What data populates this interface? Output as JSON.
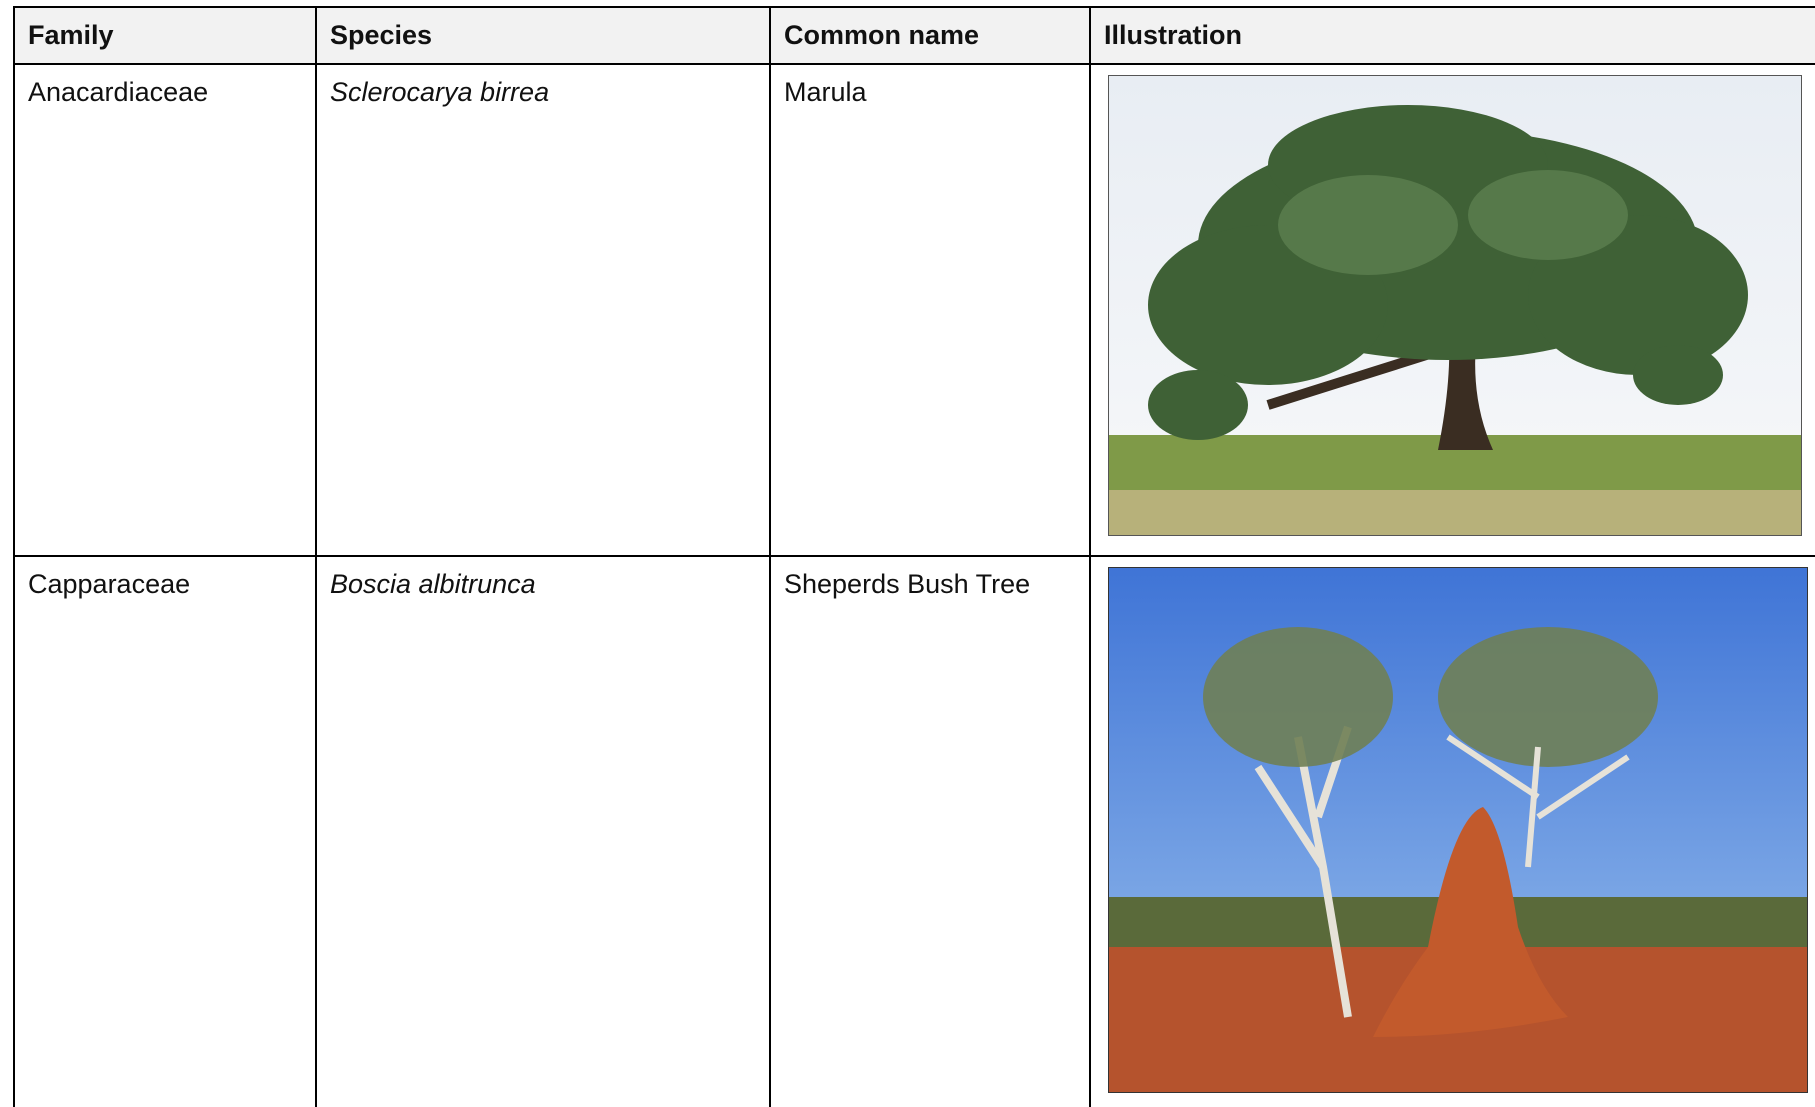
{
  "table": {
    "header": [
      "Family",
      "Species",
      "Common name",
      "Illustration"
    ],
    "rows": [
      [
        "Anacardiaceae",
        "Sclerocarya birrea",
        "Marula"
      ],
      [
        "Capparaceae",
        "Boscia albitrunca",
        "Sheperds Bush Tree"
      ]
    ]
  }
}
